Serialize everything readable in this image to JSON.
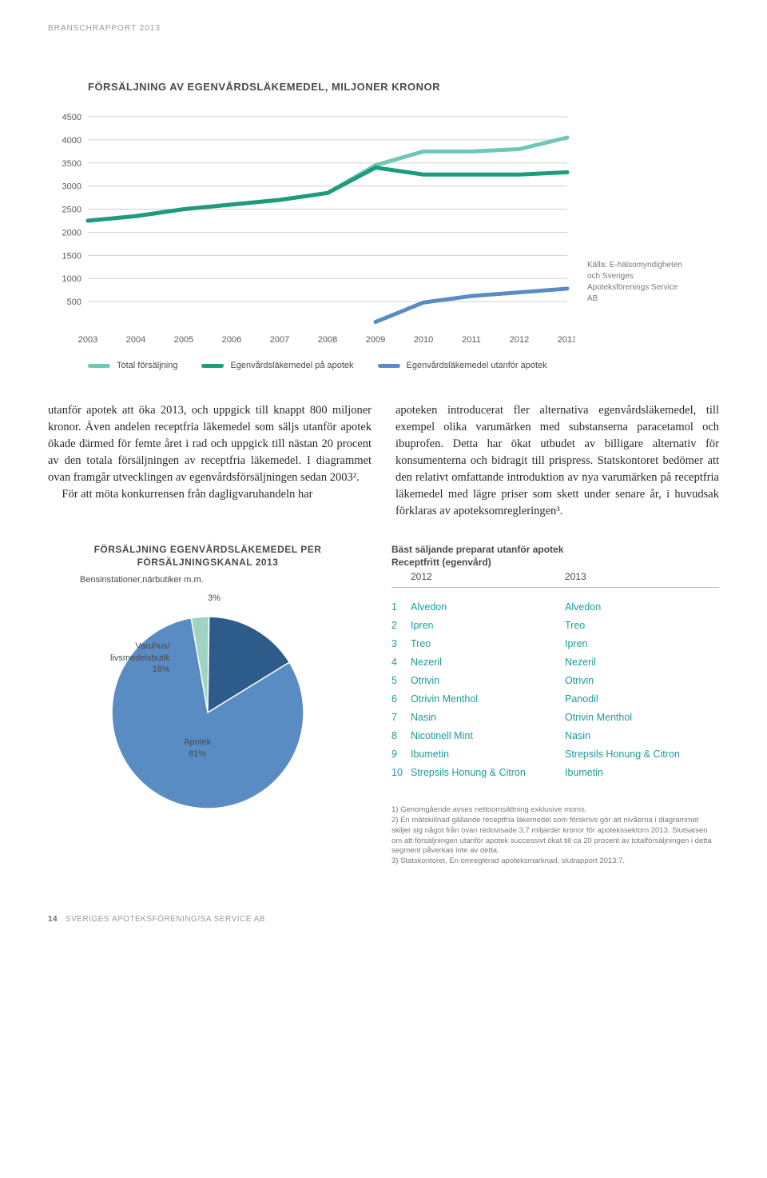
{
  "header": "BRANSCHRAPPORT 2013",
  "line_chart": {
    "title": "FÖRSÄLJNING AV EGENVÅRDSLÄKEMEDEL, MILJONER KRONOR",
    "type": "line",
    "years": [
      "2003",
      "2004",
      "2005",
      "2006",
      "2007",
      "2008",
      "2009",
      "2010",
      "2011",
      "2012",
      "2013"
    ],
    "ylim": [
      0,
      4500
    ],
    "ytick_step": 500,
    "yticks": [
      "4500",
      "4000",
      "3500",
      "3000",
      "2500",
      "2000",
      "1500",
      "1000",
      "500"
    ],
    "series": [
      {
        "name": "Total försäljning",
        "color": "#6fc7b6",
        "width": 5,
        "values": [
          2250,
          2350,
          2500,
          2600,
          2700,
          2850,
          3450,
          3750,
          3750,
          3800,
          4050
        ]
      },
      {
        "name": "Egenvårdsläkemedel på apotek",
        "color": "#1d9b7a",
        "width": 5,
        "values": [
          2250,
          2350,
          2500,
          2600,
          2700,
          2850,
          3400,
          3250,
          3250,
          3250,
          3300
        ]
      },
      {
        "name": "Egenvårdsläkemedel utanför apotek",
        "color": "#5a8cc4",
        "width": 5,
        "values": [
          null,
          null,
          null,
          null,
          null,
          null,
          60,
          480,
          620,
          700,
          780
        ]
      }
    ],
    "grid_color": "#cfcfcf",
    "background_color": "#ffffff",
    "source": "Källa: E-hälsomyndig­heten och Sveriges Apoteksförenings Service AB"
  },
  "body": {
    "left": "utanför apotek att öka 2013, och uppgick till knappt 800 miljoner kronor. Även andelen receptfria läkemedel som säljs utanför apotek ökade därmed för femte året i rad och uppgick till nästan 20 procent av den totala försälj­ningen av receptfria läkemedel. I diagrammet ovan framgår utvecklingen av egenvårdsförsäljningen sedan 2003².",
    "left2": "För att möta konkurrensen från dagligvaruhandeln har",
    "right": "apoteken introducerat fler alternativa egenvårdsläkeme­del, till exempel olika varumärken med substanserna paracetamol och ibuprofen. Detta har ökat utbudet av billigare alternativ för konsumenterna och bidragit till prispress. Statskontoret bedömer att den relativt omfattande introduktion av nya varumärken på recept­fria läkemedel med lägre priser som skett under senare år, i huvudsak förklaras av apoteksomregleringen³."
  },
  "pie_chart": {
    "title": "FÖRSÄLJNING EGENVÅRDSLÄKEMEDEL PER FÖRSÄLJNINGSKANAL 2013",
    "subtitle": "Bensinstationer,närbutiker m.m.",
    "type": "pie",
    "slices": [
      {
        "label": "Apotek",
        "value": 81,
        "color": "#5a8cc4",
        "display": "Apotek\n81%"
      },
      {
        "label": "Varuhus/ livsmedelsbutik",
        "value": 16,
        "color": "#2e5c8a",
        "display": "Varuhus/\nlivsmedelsbutik\n16%"
      },
      {
        "label": "Bensinstationer,närbutiker m.m.",
        "value": 3,
        "color": "#9fd4c2",
        "display": "3%"
      }
    ],
    "background_color": "#ffffff"
  },
  "table": {
    "title1": "Bäst säljande preparat utanför apotek",
    "title2": "Receptfritt (egenvård)",
    "col_a": "2012",
    "col_b": "2013",
    "rows": [
      {
        "rank": "1",
        "a": "Alvedon",
        "b": "Alvedon"
      },
      {
        "rank": "2",
        "a": "Ipren",
        "b": "Treo"
      },
      {
        "rank": "3",
        "a": "Treo",
        "b": "Ipren"
      },
      {
        "rank": "4",
        "a": "Nezeril",
        "b": "Nezeril"
      },
      {
        "rank": "5",
        "a": "Otrivin",
        "b": "Otrivin"
      },
      {
        "rank": "6",
        "a": "Otrivin Menthol",
        "b": "Panodil"
      },
      {
        "rank": "7",
        "a": "Nasin",
        "b": "Otrivin Menthol"
      },
      {
        "rank": "8",
        "a": "Nicotinell Mint",
        "b": "Nasin"
      },
      {
        "rank": "9",
        "a": "Ibumetin",
        "b": "Strepsils Honung & Citron"
      },
      {
        "rank": "10",
        "a": "Strepsils Honung & Citron",
        "b": "Ibumetin"
      }
    ],
    "text_color": "#1d9b9b"
  },
  "footnotes": [
    "1) Genomgående avses nettoomsättning exklusive moms.",
    "2) En mätskillnad gällande receptfria läkemedel som förskrivs gör att nivåerna i diagrammet skiljer sig något från ovan redovisade 3,7 miljarder kronor för apotekssektorn 2013. Slutsatsen om att försäljningen utanför apotek successivt ökat till ca 20 procent av totalförsäljningen i detta segment påverkas inte av detta.",
    "3) Statskontoret, En omreglerad apoteksmarknad, slutrapport 2013:7."
  ],
  "footer": {
    "page": "14",
    "pub": "SVERIGES APOTEKSFÖRENING/SA SERVICE AB"
  }
}
